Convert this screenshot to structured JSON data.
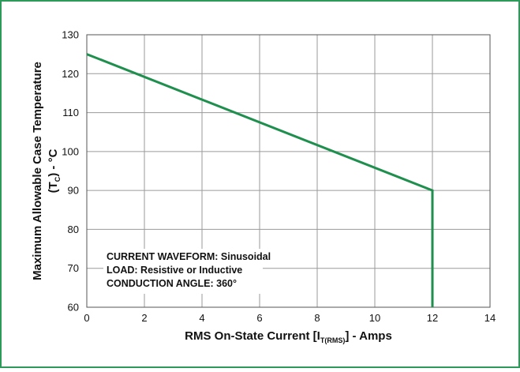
{
  "chart_data": {
    "type": "line",
    "title": "",
    "xlabel": {
      "prefix": "RMS On-State Current [I",
      "sub": "T(RMS)",
      "suffix": "] - Amps"
    },
    "ylabel": {
      "line1": "Maximum Allowable Case Temperature",
      "line2_prefix": "(T",
      "line2_sub": "C",
      "line2_suffix": ") - °C"
    },
    "xlim": [
      0,
      14
    ],
    "ylim": [
      60,
      130
    ],
    "xticks": [
      "0",
      "2",
      "4",
      "6",
      "8",
      "10",
      "12",
      "14"
    ],
    "yticks": [
      "60",
      "70",
      "80",
      "90",
      "100",
      "110",
      "120",
      "130"
    ],
    "grid": true,
    "series": [
      {
        "color": "#1f8f4e",
        "points": [
          {
            "x": 0,
            "y": 125
          },
          {
            "x": 12,
            "y": 90
          },
          {
            "x": 12,
            "y": 60
          }
        ]
      }
    ],
    "annotations": [
      "CURRENT WAVEFORM: Sinusoidal",
      "LOAD: Resistive or Inductive",
      "CONDUCTION ANGLE: 360°"
    ]
  },
  "colors": {
    "frame_border": "#2e9a5a",
    "grid": "#9a9a9a",
    "axis": "#555555"
  }
}
